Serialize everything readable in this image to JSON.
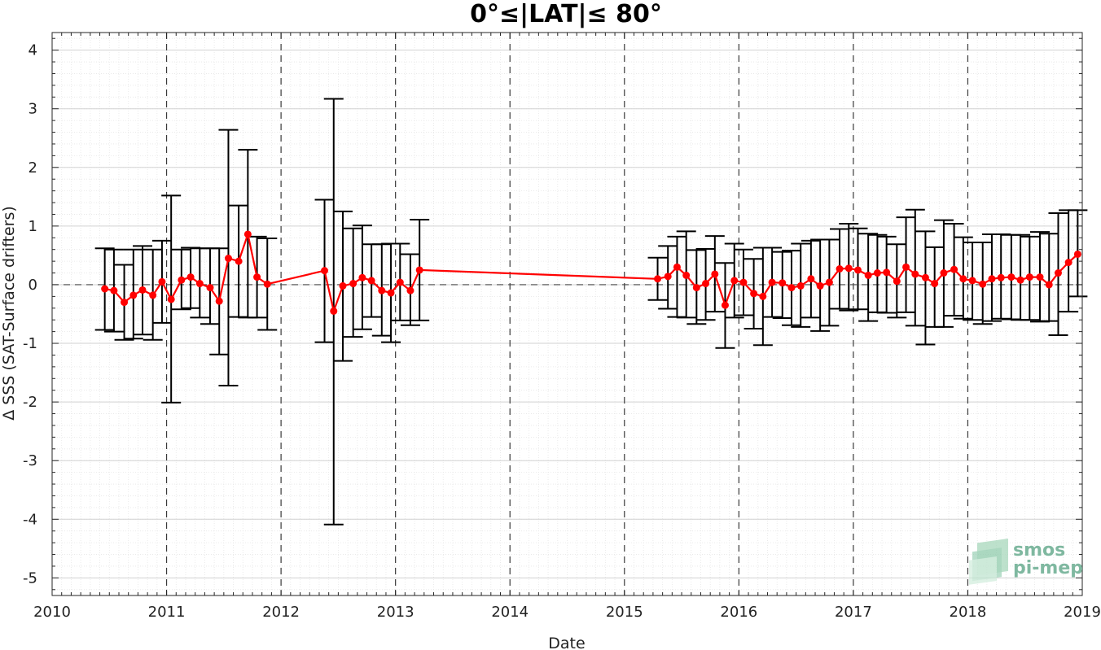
{
  "chart_data": {
    "type": "line",
    "title": "0°≤|LAT|≤ 80°",
    "xlabel": "Date",
    "ylabel": "Δ SSS (SAT-Surface drifters)",
    "xlim": [
      2010,
      2019
    ],
    "ylim": [
      -5.3,
      4.3
    ],
    "x_ticks": [
      "2010",
      "2011",
      "2012",
      "2013",
      "2014",
      "2015",
      "2016",
      "2017",
      "2018",
      "2019"
    ],
    "y_ticks": [
      "4",
      "3",
      "2",
      "1",
      "0",
      "-1",
      "-2",
      "-3",
      "-4",
      "-5"
    ],
    "grid": true,
    "zero_line": true,
    "series": [
      {
        "x": [
          "2010.46",
          "2010.54",
          "2010.63",
          "2010.71",
          "2010.79",
          "2010.88",
          "2010.96",
          "2011.04",
          "2011.13",
          "2011.21",
          "2011.29",
          "2011.38",
          "2011.46",
          "2011.54",
          "2011.63",
          "2011.71",
          "2011.79",
          "2011.88",
          "2012.38",
          "2012.46",
          "2012.54",
          "2012.63",
          "2012.71",
          "2012.79",
          "2012.88",
          "2012.96",
          "2013.04",
          "2013.13",
          "2013.21",
          "2015.29",
          "2015.38",
          "2015.46",
          "2015.54",
          "2015.63",
          "2015.71",
          "2015.79",
          "2015.88",
          "2015.96",
          "2016.04",
          "2016.13",
          "2016.21",
          "2016.29",
          "2016.38",
          "2016.46",
          "2016.54",
          "2016.63",
          "2016.71",
          "2016.79",
          "2016.88",
          "2016.96",
          "2017.04",
          "2017.13",
          "2017.21",
          "2017.29",
          "2017.38",
          "2017.46",
          "2017.54",
          "2017.63",
          "2017.71",
          "2017.79",
          "2017.88",
          "2017.96",
          "2018.04",
          "2018.13",
          "2018.21",
          "2018.29",
          "2018.38",
          "2018.46",
          "2018.54",
          "2018.63",
          "2018.71",
          "2018.79",
          "2018.88",
          "2018.96"
        ],
        "values": [
          -0.07,
          -0.1,
          -0.3,
          -0.18,
          -0.09,
          -0.18,
          0.05,
          -0.25,
          0.08,
          0.13,
          0.02,
          -0.05,
          -0.28,
          0.45,
          0.4,
          0.86,
          0.13,
          0.01,
          0.24,
          -0.45,
          -0.02,
          0.02,
          0.12,
          0.07,
          -0.1,
          -0.14,
          0.04,
          -0.1,
          0.25,
          0.1,
          0.14,
          0.3,
          0.16,
          -0.05,
          0.02,
          0.18,
          -0.35,
          0.07,
          0.04,
          -0.15,
          -0.2,
          0.04,
          0.03,
          -0.05,
          -0.02,
          0.1,
          -0.02,
          0.04,
          0.27,
          0.28,
          0.25,
          0.16,
          0.2,
          0.21,
          0.06,
          0.3,
          0.18,
          0.12,
          0.02,
          0.2,
          0.26,
          0.1,
          0.07,
          0.01,
          0.1,
          0.12,
          0.13,
          0.08,
          0.13,
          0.13,
          0.0,
          0.2,
          0.38,
          0.52
        ],
        "upper": [
          0.62,
          0.6,
          0.34,
          0.6,
          0.66,
          0.6,
          0.75,
          1.52,
          0.6,
          0.63,
          0.62,
          0.62,
          0.62,
          2.64,
          1.35,
          2.3,
          0.82,
          0.79,
          1.45,
          3.17,
          1.25,
          0.96,
          1.01,
          0.69,
          0.69,
          0.7,
          0.7,
          0.52,
          1.11,
          0.46,
          0.66,
          0.82,
          0.91,
          0.59,
          0.61,
          0.83,
          0.37,
          0.7,
          0.6,
          0.44,
          0.63,
          0.63,
          0.56,
          0.58,
          0.7,
          0.75,
          0.77,
          0.77,
          0.95,
          1.04,
          0.96,
          0.87,
          0.85,
          0.82,
          0.69,
          1.15,
          1.28,
          0.91,
          0.64,
          1.1,
          1.04,
          0.81,
          0.72,
          0.72,
          0.86,
          0.86,
          0.85,
          0.85,
          0.82,
          0.9,
          0.87,
          1.22,
          1.27,
          1.27
        ],
        "lower": [
          -0.77,
          -0.8,
          -0.94,
          -0.92,
          -0.85,
          -0.94,
          -0.65,
          -2.01,
          -0.42,
          -0.4,
          -0.56,
          -0.67,
          -1.19,
          -1.72,
          -0.55,
          -0.56,
          -0.56,
          -0.77,
          -0.98,
          -4.09,
          -1.3,
          -0.89,
          -0.76,
          -0.55,
          -0.87,
          -0.98,
          -0.61,
          -0.69,
          -0.61,
          -0.26,
          -0.41,
          -0.55,
          -0.56,
          -0.67,
          -0.6,
          -0.46,
          -1.08,
          -0.56,
          -0.52,
          -0.75,
          -1.03,
          -0.55,
          -0.57,
          -0.69,
          -0.72,
          -0.56,
          -0.79,
          -0.7,
          -0.41,
          -0.44,
          -0.42,
          -0.62,
          -0.47,
          -0.48,
          -0.56,
          -0.47,
          -0.7,
          -1.02,
          -0.72,
          -0.72,
          -0.53,
          -0.58,
          -0.6,
          -0.67,
          -0.62,
          -0.58,
          -0.59,
          -0.6,
          -0.6,
          -0.63,
          -0.62,
          -0.86,
          -0.46,
          -0.2
        ]
      }
    ],
    "colors": {
      "line": "#ff0000",
      "errorbar": "#000000",
      "grid": "#d8d8d8",
      "zero": "#444444"
    }
  },
  "logo": {
    "line1": "smos",
    "line2": "pi-mep"
  }
}
